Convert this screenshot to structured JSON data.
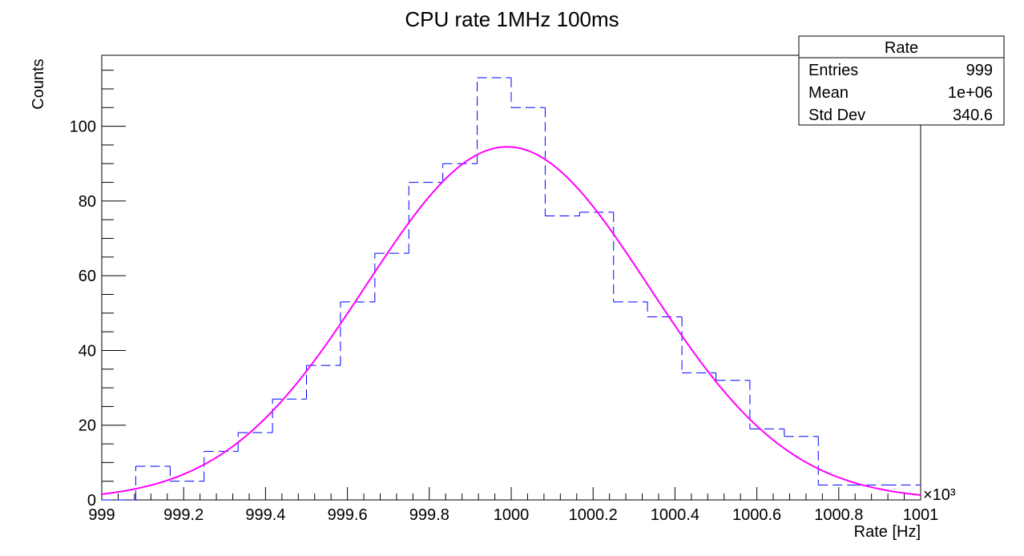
{
  "chart_data": {
    "type": "histogram",
    "title": "CPU rate 1MHz 100ms",
    "xlabel": "Rate [Hz]",
    "ylabel": "Counts",
    "x_multiplier": "×10³",
    "xlim": [
      999,
      1001
    ],
    "ylim": [
      0,
      119
    ],
    "x_ticks": [
      "999",
      "999.2",
      "999.4",
      "999.6",
      "999.8",
      "1000",
      "1000.2",
      "1000.4",
      "1000.6",
      "1000.8",
      "1001"
    ],
    "y_ticks": [
      "0",
      "20",
      "40",
      "60",
      "80",
      "100"
    ],
    "bins": [
      {
        "x0": 999.0,
        "x1": 999.083,
        "y": 0
      },
      {
        "x0": 999.083,
        "x1": 999.167,
        "y": 9
      },
      {
        "x0": 999.167,
        "x1": 999.25,
        "y": 5
      },
      {
        "x0": 999.25,
        "x1": 999.333,
        "y": 13
      },
      {
        "x0": 999.333,
        "x1": 999.417,
        "y": 18
      },
      {
        "x0": 999.417,
        "x1": 999.5,
        "y": 27
      },
      {
        "x0": 999.5,
        "x1": 999.583,
        "y": 36
      },
      {
        "x0": 999.583,
        "x1": 999.667,
        "y": 53
      },
      {
        "x0": 999.667,
        "x1": 999.75,
        "y": 66
      },
      {
        "x0": 999.75,
        "x1": 999.833,
        "y": 85
      },
      {
        "x0": 999.833,
        "x1": 999.917,
        "y": 90
      },
      {
        "x0": 999.917,
        "x1": 1000.0,
        "y": 113
      },
      {
        "x0": 1000.0,
        "x1": 1000.083,
        "y": 105
      },
      {
        "x0": 1000.083,
        "x1": 1000.167,
        "y": 76
      },
      {
        "x0": 1000.167,
        "x1": 1000.25,
        "y": 77
      },
      {
        "x0": 1000.25,
        "x1": 1000.333,
        "y": 53
      },
      {
        "x0": 1000.333,
        "x1": 1000.417,
        "y": 49
      },
      {
        "x0": 1000.417,
        "x1": 1000.5,
        "y": 34
      },
      {
        "x0": 1000.5,
        "x1": 1000.583,
        "y": 32
      },
      {
        "x0": 1000.583,
        "x1": 1000.667,
        "y": 19
      },
      {
        "x0": 1000.667,
        "x1": 1000.75,
        "y": 17
      },
      {
        "x0": 1000.75,
        "x1": 1000.833,
        "y": 4
      },
      {
        "x0": 1000.833,
        "x1": 1000.917,
        "y": 4
      },
      {
        "x0": 1000.917,
        "x1": 1001.0,
        "y": 4
      }
    ],
    "fit": {
      "type": "gaussian",
      "amplitude": 94.5,
      "mean": 999.99,
      "sigma": 0.345,
      "x_range": [
        999.0,
        1001.0
      ]
    },
    "stats_box": {
      "title": "Rate",
      "rows": [
        {
          "label": "Entries",
          "value": "999"
        },
        {
          "label": "Mean",
          "value": "1e+06"
        },
        {
          "label": "Std Dev",
          "value": "340.6"
        }
      ]
    },
    "colors": {
      "histogram": "#0000ff",
      "fit": "#ff00ff",
      "axes": "#000000"
    }
  }
}
